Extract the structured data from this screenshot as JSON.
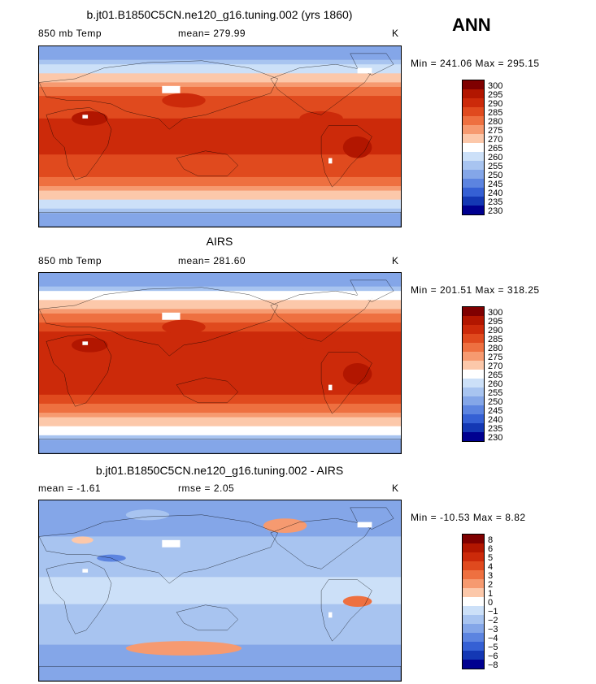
{
  "season": "ANN",
  "panels": [
    {
      "title": "b.jt01.B1850C5CN.ne120_g16.tuning.002 (yrs 1860)",
      "left_label": "850 mb Temp",
      "center_label": "mean=  279.99",
      "units": "K",
      "minmax": "Min = 241.06 Max = 295.15",
      "levels": [
        "300",
        "295",
        "290",
        "285",
        "280",
        "275",
        "270",
        "265",
        "260",
        "255",
        "250",
        "245",
        "240",
        "235",
        "230"
      ],
      "kind": "model"
    },
    {
      "title": "AIRS",
      "left_label": "850 mb Temp",
      "center_label": "mean=  281.60",
      "units": "K",
      "minmax": "Min = 201.51 Max = 318.25",
      "levels": [
        "300",
        "295",
        "290",
        "285",
        "280",
        "275",
        "270",
        "265",
        "260",
        "255",
        "250",
        "245",
        "240",
        "235",
        "230"
      ],
      "kind": "obs"
    },
    {
      "title": "b.jt01.B1850C5CN.ne120_g16.tuning.002 - AIRS",
      "left_label": "mean =   -1.61",
      "center_label": "rmse =    2.05",
      "units": "K",
      "minmax": "Min = -10.53 Max =   8.82",
      "levels": [
        "8",
        "6",
        "5",
        "4",
        "3",
        "2",
        "1",
        "0",
        "−1",
        "−2",
        "−3",
        "−4",
        "−5",
        "−6",
        "−8"
      ],
      "kind": "diff"
    }
  ],
  "colors": [
    "#7f0000",
    "#b21600",
    "#cc2a0a",
    "#e04a1e",
    "#ee7040",
    "#f69a70",
    "#fcc8aa",
    "#ffffff",
    "#cce0f8",
    "#a8c4f0",
    "#84a6e8",
    "#5c84e0",
    "#3560d4",
    "#1438b4",
    "#000090"
  ]
}
